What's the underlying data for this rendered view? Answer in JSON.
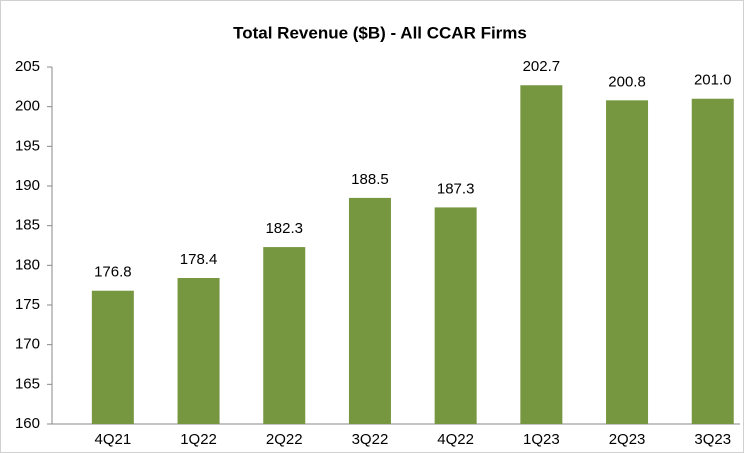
{
  "chart_data": {
    "type": "bar",
    "title": "Total Revenue ($B) - All CCAR Firms",
    "categories": [
      "4Q21",
      "1Q22",
      "2Q22",
      "3Q22",
      "4Q22",
      "1Q23",
      "2Q23",
      "3Q23"
    ],
    "values": [
      176.8,
      178.4,
      182.3,
      188.5,
      187.3,
      202.7,
      200.8,
      201.0
    ],
    "value_labels": [
      "176.8",
      "178.4",
      "182.3",
      "188.5",
      "187.3",
      "202.7",
      "200.8",
      "201.0"
    ],
    "color": "#76963f",
    "ylim": [
      160,
      205
    ],
    "yticks": [
      160,
      165,
      170,
      175,
      180,
      185,
      190,
      195,
      200,
      205
    ],
    "grid": false
  }
}
